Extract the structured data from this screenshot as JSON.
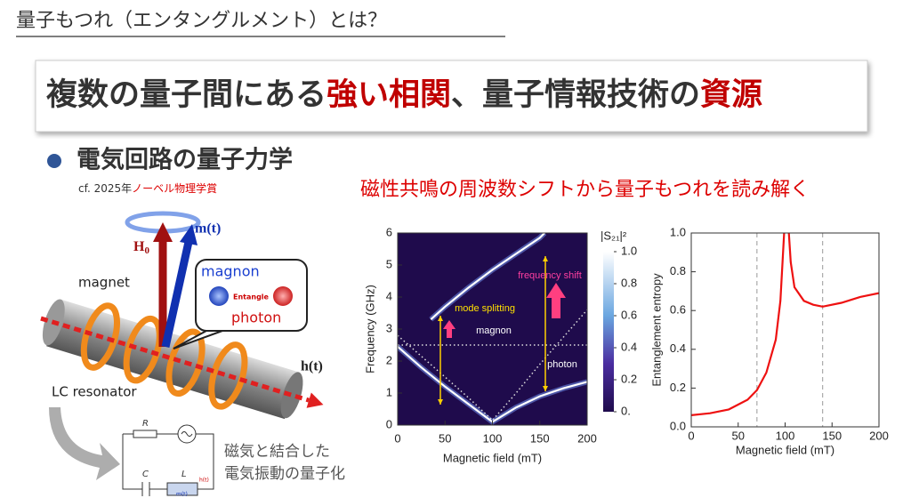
{
  "header": {
    "title": "量子もつれ（エンタングルメント）とは？"
  },
  "banner": {
    "parts": [
      "複数の量子間にある",
      "強い相関",
      "、量子情報技術の",
      "資源"
    ]
  },
  "bullet": {
    "text": "電気回路の量子力学",
    "note_prefix": "cf. 2025年",
    "note_highlight": "ノーベル物理学賞"
  },
  "illustration": {
    "H_main": "H",
    "H_sub": "0",
    "m": "m(t)",
    "h": "h(t)",
    "magnet": "magnet",
    "magnon": "magnon",
    "entangle": "Entangle",
    "photon": "photon",
    "resonator": "LC resonator"
  },
  "circuit": {
    "R": "R",
    "C": "C",
    "L": "L"
  },
  "caption": {
    "lines": [
      "磁気と結合した",
      "電気振動の量子化"
    ]
  },
  "subtitle": "磁性共鳴の周波数シフトから量子もつれを読み解く",
  "chart_data": [
    {
      "type": "line",
      "xlabel": "Magnetic field (mT)",
      "ylabel": "Frequency (GHz)",
      "xlim": [
        0,
        200
      ],
      "ylim": [
        0,
        6
      ],
      "xticks": [
        0,
        50,
        100,
        150,
        200
      ],
      "yticks": [
        0,
        1,
        2,
        3,
        4,
        5,
        6
      ],
      "background": "#1f0b4c",
      "series": [
        {
          "color": "#ffffff",
          "style": "solid",
          "x": [
            35,
            50,
            75,
            100,
            125,
            150,
            155
          ],
          "values": [
            3.3,
            3.7,
            4.3,
            4.85,
            5.35,
            5.85,
            6.0
          ]
        },
        {
          "color": "#ffffff",
          "style": "solid",
          "x": [
            0,
            25,
            50,
            75,
            100,
            125,
            150,
            175,
            200
          ],
          "values": [
            2.45,
            1.8,
            1.2,
            0.65,
            0.1,
            0.55,
            0.9,
            1.15,
            1.35
          ]
        },
        {
          "color": "#dddddd",
          "style": "dotted",
          "x": [
            0,
            25,
            50,
            75,
            100,
            125,
            150,
            175,
            200
          ],
          "values": [
            2.8,
            2.15,
            1.5,
            0.85,
            0.15,
            1.0,
            1.9,
            2.75,
            3.6
          ]
        },
        {
          "color": "#dddddd",
          "style": "dotted",
          "x": [
            0,
            200
          ],
          "values": [
            2.5,
            2.5
          ]
        }
      ],
      "annotations": [
        "frequency shift",
        "mode splitting",
        "magnon",
        "photon"
      ],
      "colorbar": {
        "label": "|S₂₁|²",
        "lim": [
          0,
          1
        ],
        "ticks": [
          {
            "value": 1,
            "label": "1.0"
          },
          0.8,
          0.6,
          0.4,
          0.2,
          {
            "value": 0,
            "label": "0."
          }
        ]
      }
    },
    {
      "type": "line",
      "xlabel": "Magnetic field (mT)",
      "ylabel": "Entanglement entropy",
      "xlim": [
        0,
        200
      ],
      "ylim": [
        0,
        1
      ],
      "xticks": [
        0,
        50,
        100,
        150,
        200
      ],
      "yticks": [
        {
          "value": 0,
          "label": "0.0"
        },
        0.2,
        0.4,
        0.6,
        0.8,
        {
          "value": 1,
          "label": "1.0"
        }
      ],
      "vlines": [
        70,
        140
      ],
      "series": [
        {
          "color": "#ee1111",
          "style": "solid",
          "x": [
            0,
            20,
            40,
            60,
            70,
            80,
            90,
            95,
            99,
            101.5,
            104,
            106,
            110,
            120,
            130,
            140,
            160,
            180,
            200
          ],
          "values": [
            0.06,
            0.07,
            0.09,
            0.14,
            0.19,
            0.28,
            0.45,
            0.65,
            1.0,
            null,
            1.0,
            0.85,
            0.72,
            0.65,
            0.63,
            0.62,
            0.64,
            0.67,
            0.69
          ]
        }
      ]
    }
  ]
}
